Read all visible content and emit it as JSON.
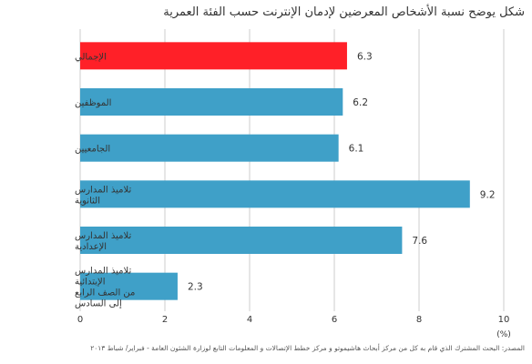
{
  "title": "شكل يوضح نسبة الأشخاص المعرضين لإدمان الإنترنت حسب الفئة العمرية",
  "source": "المصدر: البحث المشترك الذي قام به كل من مركز أبحاث هاشيموتو و مركز خطط الإتصالات و المعلومات التابع لوزارة الشئون العامة - فبراير/ شباط ٢٠١٣",
  "chart_data": {
    "type": "bar",
    "orientation": "horizontal",
    "categories": [
      [
        "الإجمالي"
      ],
      [
        "الموظفين"
      ],
      [
        "الجامعيين"
      ],
      [
        "تلاميذ المدارس",
        "الثانوية"
      ],
      [
        "تلاميذ المدارس",
        "الإعدادية"
      ],
      [
        "تلاميذ المدارس",
        "الإبتدائية",
        "من الصف الرابع",
        "إلى السادس"
      ]
    ],
    "values": [
      6.3,
      6.2,
      6.1,
      9.2,
      7.6,
      2.3
    ],
    "value_labels": [
      "6.3",
      "6.2",
      "6.1",
      "9.2",
      "7.6",
      "2.3"
    ],
    "bar_colors": [
      "#ff2028",
      "#3fa0c8",
      "#3fa0c8",
      "#3fa0c8",
      "#3fa0c8",
      "#3fa0c8"
    ],
    "x_ticks": [
      "0",
      "2",
      "4",
      "6",
      "8",
      "10"
    ],
    "xlim": [
      0,
      10
    ],
    "xlabel": "(%)",
    "grid": true,
    "grid_color": "#cccccc"
  }
}
